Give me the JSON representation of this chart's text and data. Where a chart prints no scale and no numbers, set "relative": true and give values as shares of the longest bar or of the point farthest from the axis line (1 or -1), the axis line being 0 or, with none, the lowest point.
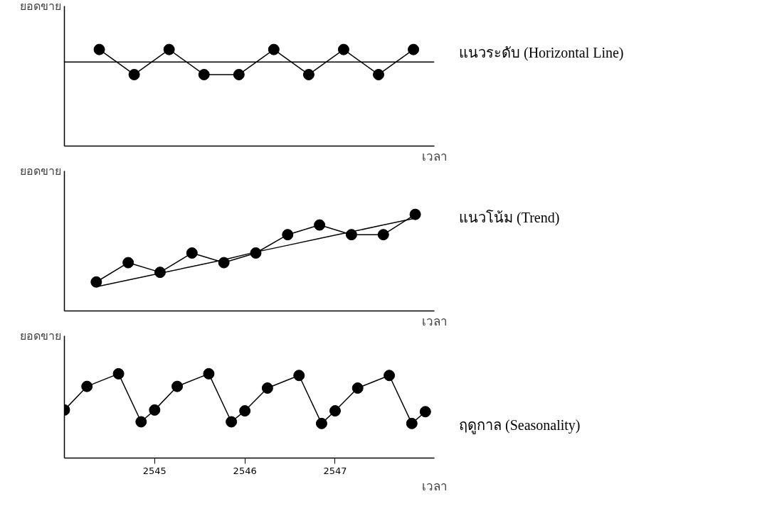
{
  "chart_data": [
    {
      "type": "line",
      "relative": true,
      "xlabel": "เวลา",
      "ylabel": "ยอดขาย",
      "annotations": [
        "แนวระดับ (Horizontal Line)"
      ],
      "categories": [
        null,
        null,
        null,
        null,
        null,
        null,
        null,
        null,
        null,
        null
      ],
      "marker": "circle",
      "tick_labels": false,
      "series": [
        {
          "color": "#000000",
          "values": [
            1,
            0.74,
            1,
            0.74,
            0.74,
            1,
            0.74,
            1,
            0.74,
            1
          ]
        }
      ],
      "ref_lines": [
        {
          "axis": "y",
          "value": 0.87,
          "color": "#000000"
        }
      ]
    },
    {
      "type": "line",
      "relative": true,
      "xlabel": "เวลา",
      "ylabel": "ยอดขาย",
      "annotations": [
        "แนวโน้ม (Trend)"
      ],
      "categories": [
        null,
        null,
        null,
        null,
        null,
        null,
        null,
        null,
        null,
        null,
        null
      ],
      "tick_labels": false,
      "series": [
        {
          "color": "#000000",
          "marker": "circle",
          "values": [
            0.3,
            0.5,
            0.4,
            0.6,
            0.5,
            0.6,
            0.79,
            0.89,
            0.79,
            0.79,
            1
          ]
        },
        {
          "color": "#000000",
          "marker": "none",
          "values": [
            0.25,
            0.32,
            0.39,
            0.46,
            0.53,
            0.61,
            0.68,
            0.75,
            0.82,
            0.89,
            0.96
          ]
        }
      ]
    },
    {
      "type": "line",
      "relative": true,
      "xlabel": "เวลา",
      "ylabel": "ยอดขาย",
      "annotations": [
        "ฤดูกาล (Seasonality)"
      ],
      "marker": "circle",
      "tick_labels": "x",
      "xlim": [
        2544,
        2548.1
      ],
      "xticks": [
        2545,
        2546,
        2547
      ],
      "x": [
        2544.0,
        2544.25,
        2544.6,
        2544.85,
        2545.0,
        2545.25,
        2545.6,
        2545.85,
        2546.0,
        2546.25,
        2546.6,
        2546.85,
        2547.0,
        2547.25,
        2547.6,
        2547.85,
        2548.0
      ],
      "series": [
        {
          "color": "#000000",
          "values": [
            0.57,
            0.85,
            1,
            0.43,
            0.57,
            0.85,
            1,
            0.43,
            0.56,
            0.83,
            0.98,
            0.41,
            0.56,
            0.83,
            0.98,
            0.41,
            0.55
          ]
        }
      ]
    }
  ]
}
